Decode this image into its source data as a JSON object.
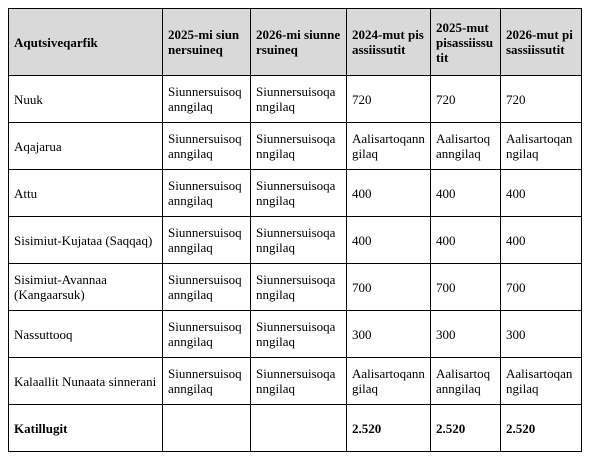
{
  "table": {
    "header": [
      "Aqutsiveqarfik",
      "2025-mi siunnersuineq",
      "2026-mi siunnersuineq",
      "2024-mut pisassiissutit",
      "2025-mut pisassiissutit",
      "2026-mut pisassiissutit"
    ],
    "rows": [
      [
        "Nuuk",
        "Siunnersuisoqanngilaq",
        "Siunnersuisoqanngilaq",
        720,
        720,
        720
      ],
      [
        "Aqajarua",
        "Siunnersuisoqanngilaq",
        "Siunnersuisoqanngilaq",
        "Aalisartoqanngilaq",
        "Aalisartoqanngilaq",
        "Aalisartoqanngilaq"
      ],
      [
        "Attu",
        "Siunnersuisoqanngilaq",
        "Siunnersuisoqanngilaq",
        400,
        400,
        400
      ],
      [
        "Sisimiut-Kujataa (Saqqaq)",
        "Siunnersuisoqanngilaq",
        "Siunnersuisoqanngilaq",
        400,
        400,
        400
      ],
      [
        "Sisimiut-Avannaa (Kangaarsuk)",
        "Siunnersuisoqanngilaq",
        "Siunnersuisoqanngilaq",
        700,
        700,
        700
      ],
      [
        "Nassuttooq",
        "Siunnersuisoqanngilaq",
        "Siunnersuisoqanngilaq",
        300,
        300,
        300
      ],
      [
        "Kalaallit Nunaata sinnerani",
        "Siunnersuisoqanngilaq",
        "Siunnersuisoqanngilaq",
        "Aalisartoqanngilaq",
        "Aalisartoqanngilaq",
        "Aalisartoqanngilaq"
      ]
    ],
    "total": {
      "label": "Katillugit",
      "values": [
        "2.520",
        "2.520",
        "2.520"
      ]
    }
  }
}
